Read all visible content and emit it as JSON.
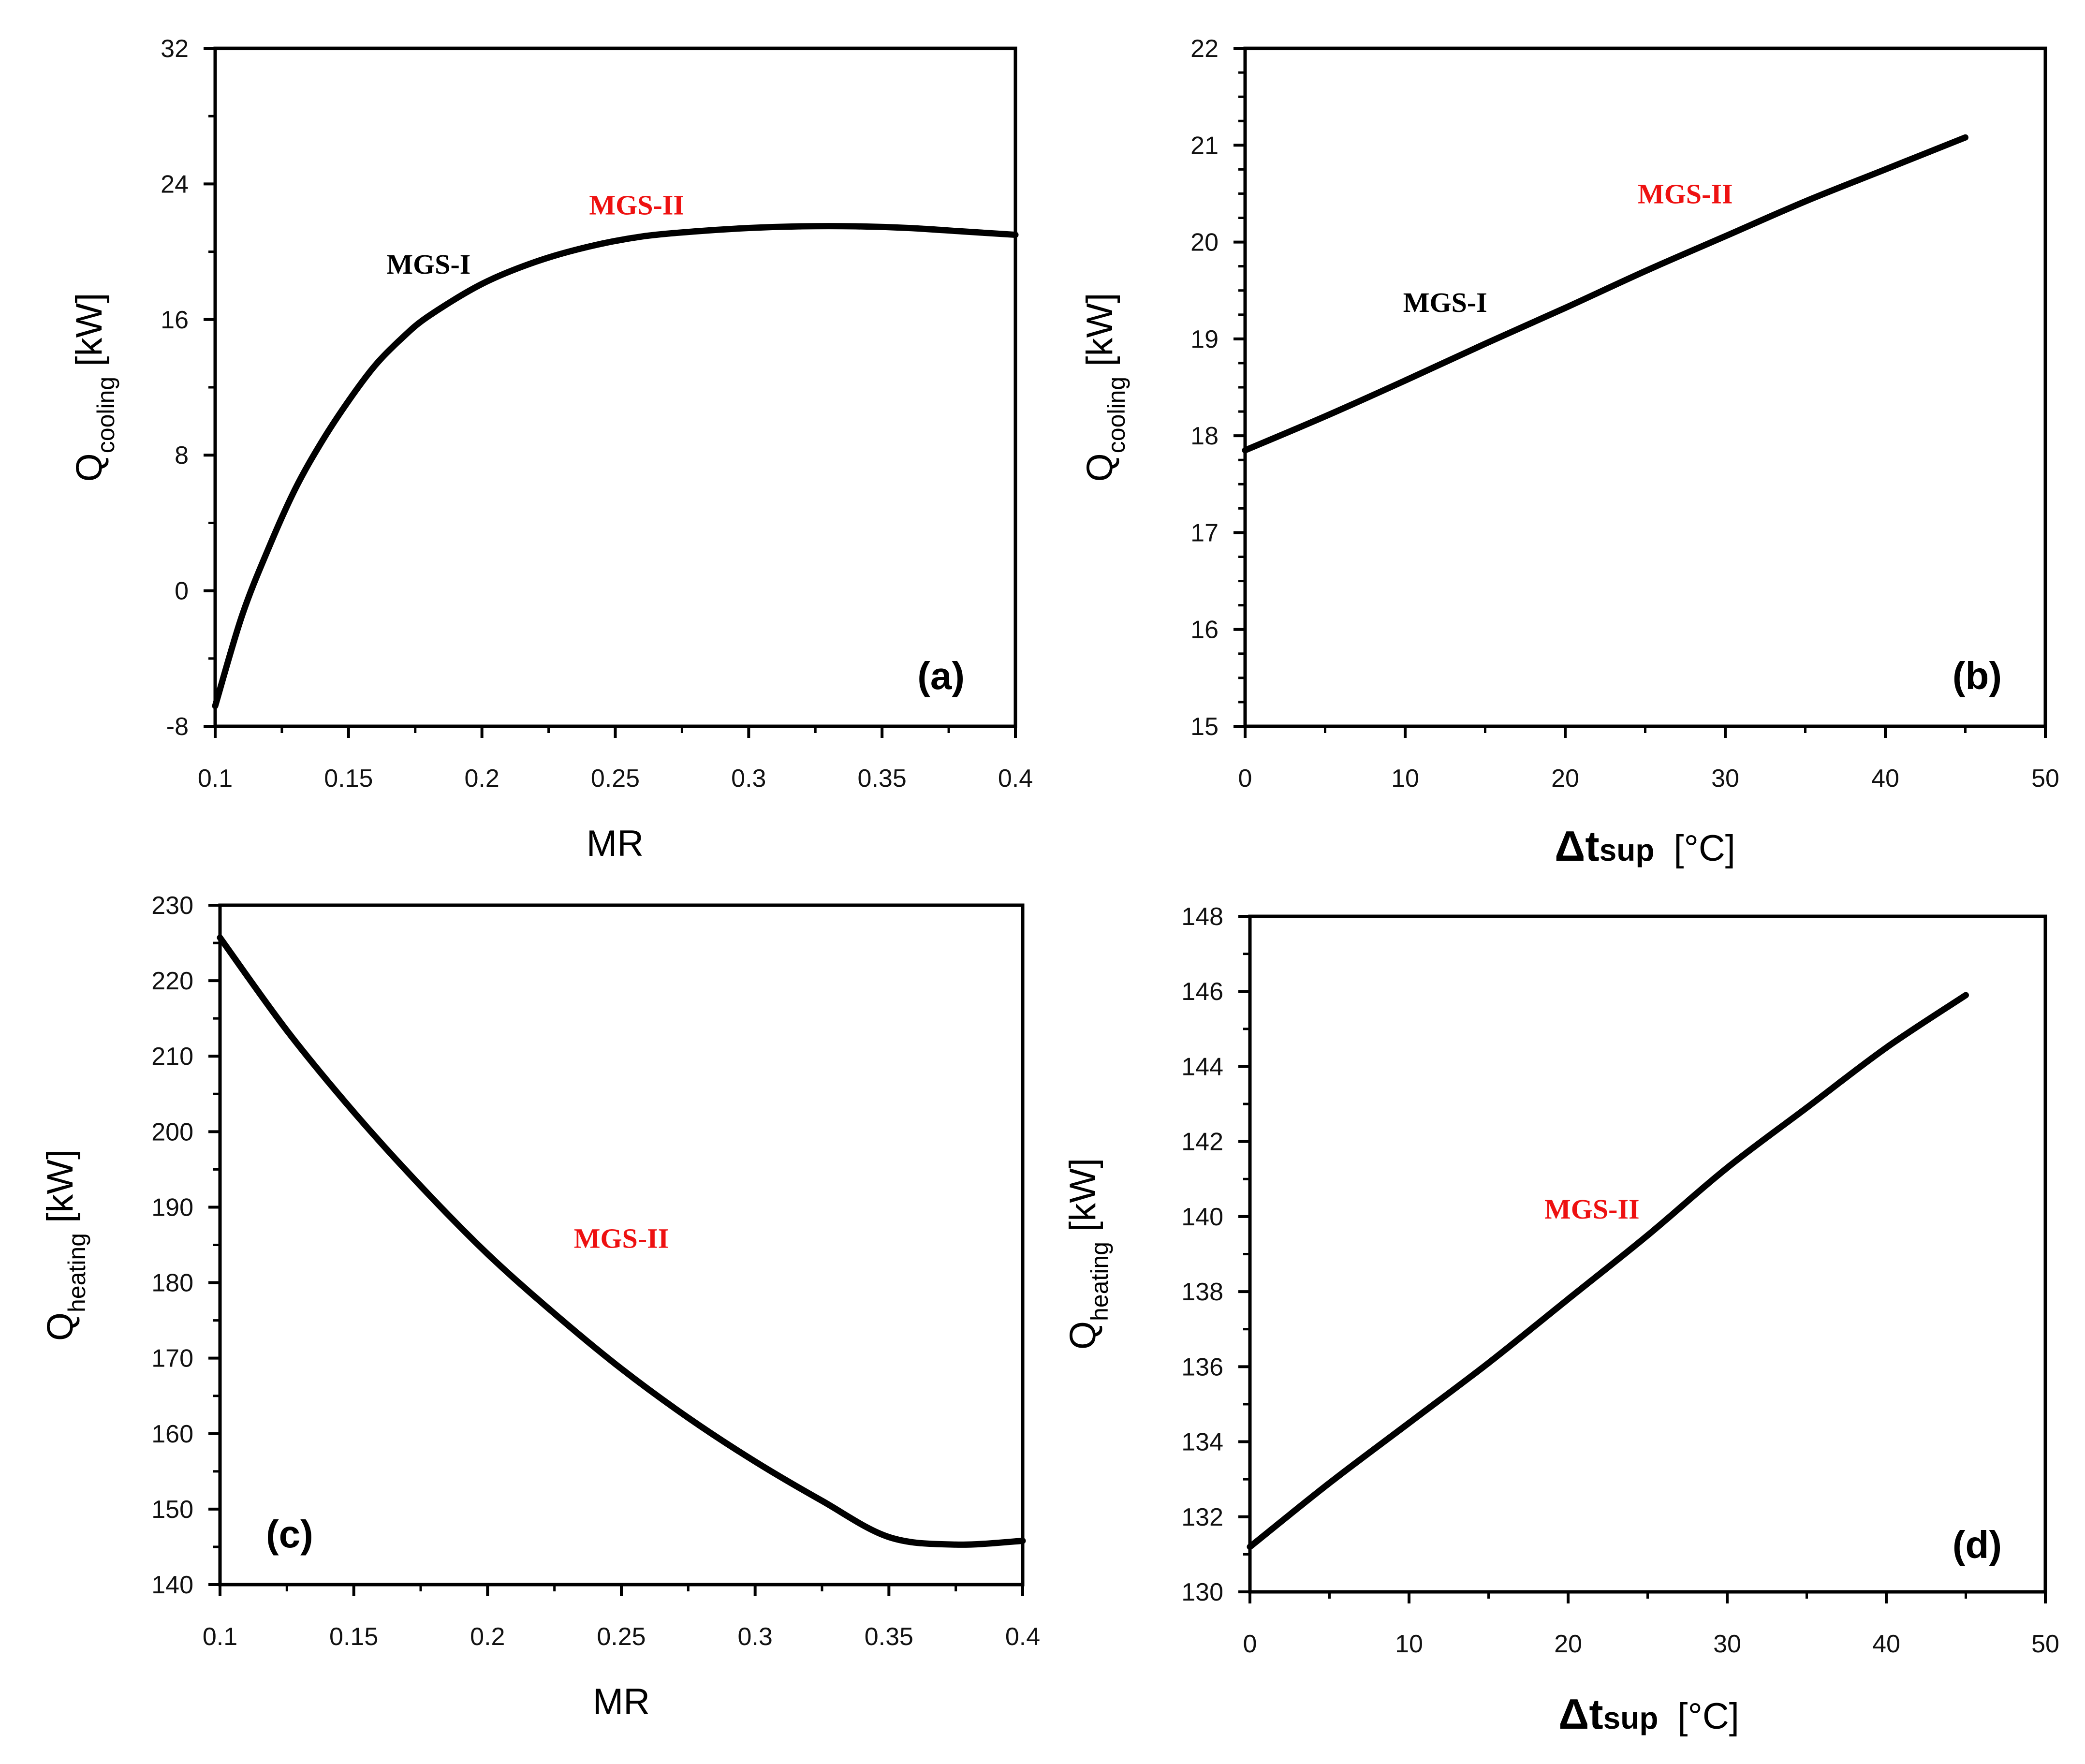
{
  "chart_data": [
    {
      "id": "a",
      "type": "line",
      "panel_label": "(a)",
      "xlabel": "MR",
      "ylabel": {
        "main": "Q",
        "sub": "cooling",
        "unit": " [kW]"
      },
      "xlim": [
        0.1,
        0.4
      ],
      "ylim": [
        -8,
        32
      ],
      "xticks": [
        0.1,
        0.15,
        0.2,
        0.25,
        0.3,
        0.35,
        0.4
      ],
      "xtick_labels": [
        "0.1",
        "0.15",
        "0.2",
        "0.25",
        "0.3",
        "0.35",
        "0.4"
      ],
      "yticks": [
        -8,
        0,
        8,
        16,
        24,
        32
      ],
      "ytick_labels": [
        "-8",
        "0",
        "8",
        "16",
        "24",
        "32"
      ],
      "x_minor_step": 0.025,
      "y_minor_step": 4,
      "series": [
        {
          "name": "Q cooling",
          "color": "#000000",
          "x": [
            0.1,
            0.11,
            0.12,
            0.13,
            0.14,
            0.15,
            0.16,
            0.17,
            0.18,
            0.2,
            0.22,
            0.24,
            0.26,
            0.28,
            0.3,
            0.32,
            0.34,
            0.36,
            0.38,
            0.4
          ],
          "y": [
            -6.8,
            -1.5,
            2.5,
            6.0,
            8.8,
            11.2,
            13.3,
            14.9,
            16.2,
            18.1,
            19.4,
            20.3,
            20.9,
            21.2,
            21.4,
            21.5,
            21.5,
            21.4,
            21.2,
            21.0
          ]
        }
      ],
      "annotations": [
        {
          "text": "MGS-I",
          "x": 0.18,
          "y": 18.7,
          "color": "#000000"
        },
        {
          "text": "MGS-II",
          "x": 0.258,
          "y": 22.2,
          "color": "#ee1111"
        }
      ]
    },
    {
      "id": "b",
      "type": "line",
      "panel_label": "(b)",
      "xlabel": {
        "delta": "Δt",
        "sub": "sup",
        "unit": "[°C]"
      },
      "ylabel": {
        "main": "Q",
        "sub": "cooling",
        "unit": " [kW]"
      },
      "xlim": [
        0,
        50
      ],
      "ylim": [
        15,
        22
      ],
      "xticks": [
        0,
        10,
        20,
        30,
        40,
        50
      ],
      "xtick_labels": [
        "0",
        "10",
        "20",
        "30",
        "40",
        "50"
      ],
      "yticks": [
        15,
        16,
        17,
        18,
        19,
        20,
        21,
        22
      ],
      "ytick_labels": [
        "15",
        "16",
        "17",
        "18",
        "19",
        "20",
        "21",
        "22"
      ],
      "x_minor_step": 5,
      "y_minor_step": 0.25,
      "series": [
        {
          "name": "Q cooling",
          "color": "#000000",
          "x": [
            0,
            5,
            10,
            15,
            20,
            25,
            30,
            35,
            40,
            45
          ],
          "y": [
            17.85,
            18.2,
            18.57,
            18.95,
            19.32,
            19.7,
            20.06,
            20.42,
            20.75,
            21.08
          ]
        }
      ],
      "annotations": [
        {
          "text": "MGS-I",
          "x": 12.5,
          "y": 19.28,
          "color": "#000000"
        },
        {
          "text": "MGS-II",
          "x": 27.5,
          "y": 20.4,
          "color": "#ee1111"
        }
      ]
    },
    {
      "id": "c",
      "type": "line",
      "panel_label": "(c)",
      "xlabel": "MR",
      "ylabel": {
        "main": "Q",
        "sub": "heating",
        "unit": " [kW]"
      },
      "xlim": [
        0.1,
        0.4
      ],
      "ylim": [
        140,
        230
      ],
      "xticks": [
        0.1,
        0.15,
        0.2,
        0.25,
        0.3,
        0.35,
        0.4
      ],
      "xtick_labels": [
        "0.1",
        "0.15",
        "0.2",
        "0.25",
        "0.3",
        "0.35",
        "0.4"
      ],
      "yticks": [
        140,
        150,
        160,
        170,
        180,
        190,
        200,
        210,
        220,
        230
      ],
      "ytick_labels": [
        "140",
        "150",
        "160",
        "170",
        "180",
        "190",
        "200",
        "210",
        "220",
        "230"
      ],
      "x_minor_step": 0.025,
      "y_minor_step": 5,
      "series": [
        {
          "name": "Q heating",
          "color": "#000000",
          "x": [
            0.1,
            0.125,
            0.15,
            0.175,
            0.2,
            0.225,
            0.25,
            0.275,
            0.3,
            0.325,
            0.35,
            0.375,
            0.4
          ],
          "y": [
            225.7,
            213.4,
            202.6,
            192.8,
            183.8,
            175.9,
            168.6,
            162.1,
            156.3,
            151.1,
            146.3,
            145.3,
            145.8
          ]
        }
      ],
      "annotations": [
        {
          "text": "MGS-II",
          "x": 0.25,
          "y": 184.6,
          "color": "#ee1111"
        }
      ]
    },
    {
      "id": "d",
      "type": "line",
      "panel_label": "(d)",
      "xlabel": {
        "delta": "Δt",
        "sub": "sup",
        "unit": "[°C]"
      },
      "ylabel": {
        "main": "Q",
        "sub": "heating",
        "unit": " [kW]"
      },
      "xlim": [
        0,
        50
      ],
      "ylim": [
        130,
        148
      ],
      "xticks": [
        0,
        10,
        20,
        30,
        40,
        50
      ],
      "xtick_labels": [
        "0",
        "10",
        "20",
        "30",
        "40",
        "50"
      ],
      "yticks": [
        130,
        132,
        134,
        136,
        138,
        140,
        142,
        144,
        146,
        148
      ],
      "ytick_labels": [
        "130",
        "132",
        "134",
        "136",
        "138",
        "140",
        "142",
        "144",
        "146",
        "148"
      ],
      "x_minor_step": 5,
      "y_minor_step": 1,
      "series": [
        {
          "name": "Q heating",
          "color": "#000000",
          "x": [
            0,
            5,
            10,
            15,
            20,
            25,
            30,
            35,
            40,
            45
          ],
          "y": [
            131.2,
            132.9,
            134.5,
            136.1,
            137.8,
            139.5,
            141.3,
            142.9,
            144.5,
            145.9
          ]
        }
      ],
      "annotations": [
        {
          "text": "MGS-II",
          "x": 21.5,
          "y": 139.95,
          "color": "#ee1111"
        }
      ]
    }
  ]
}
